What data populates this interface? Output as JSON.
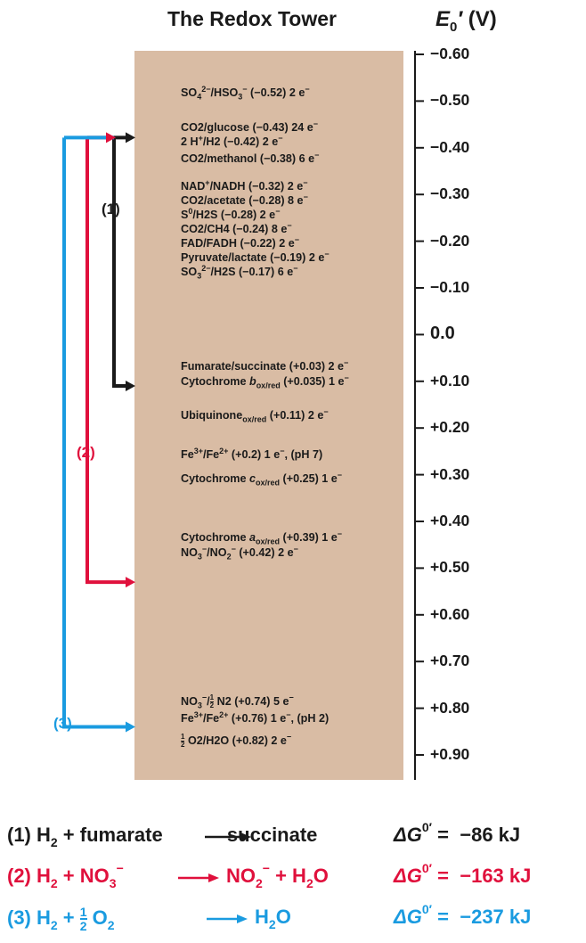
{
  "title": "The Redox Tower",
  "axis_label": {
    "main": "E",
    "sub": "0",
    "prime": "′",
    "unit": "(V)"
  },
  "axis_ticks": [
    "−0.60",
    "−0.50",
    "−0.40",
    "−0.30",
    "−0.20",
    "−0.10",
    "0.0",
    "+0.10",
    "+0.20",
    "+0.30",
    "+0.40",
    "+0.50",
    "+0.60",
    "+0.70",
    "+0.80",
    "+0.90"
  ],
  "couples": [
    {
      "name": "SO4^2−/HSO3^−",
      "e0": -0.52,
      "electrons": 2
    },
    {
      "name": "CO2/glucose",
      "e0": -0.43,
      "electrons": 24
    },
    {
      "name": "2 H+/H2",
      "e0": -0.42,
      "electrons": 2
    },
    {
      "name": "CO2/methanol",
      "e0": -0.38,
      "electrons": 6
    },
    {
      "name": "NAD+/NADH",
      "e0": -0.32,
      "electrons": 2
    },
    {
      "name": "CO2/acetate",
      "e0": -0.28,
      "electrons": 8
    },
    {
      "name": "S0/H2S",
      "e0": -0.28,
      "electrons": 2
    },
    {
      "name": "CO2/CH4",
      "e0": -0.24,
      "electrons": 8
    },
    {
      "name": "FAD/FADH",
      "e0": -0.22,
      "electrons": 2
    },
    {
      "name": "Pyruvate/lactate",
      "e0": -0.19,
      "electrons": 2
    },
    {
      "name": "SO3^2−/H2S",
      "e0": -0.17,
      "electrons": 6
    },
    {
      "name": "Fumarate/succinate",
      "e0": 0.03,
      "electrons": 2
    },
    {
      "name": "Cytochrome b ox/red",
      "e0": 0.035,
      "electrons": 1
    },
    {
      "name": "Ubiquinone ox/red",
      "e0": 0.11,
      "electrons": 2
    },
    {
      "name": "Fe3+/Fe2+",
      "e0": 0.2,
      "electrons": 1,
      "note": "(pH 7)"
    },
    {
      "name": "Cytochrome c ox/red",
      "e0": 0.25,
      "electrons": 1
    },
    {
      "name": "Cytochrome a ox/red",
      "e0": 0.39,
      "electrons": 1
    },
    {
      "name": "NO3^−/NO2^−",
      "e0": 0.42,
      "electrons": 2
    },
    {
      "name": "NO3^−/½ N2",
      "e0": 0.74,
      "electrons": 5
    },
    {
      "name": "Fe3+/Fe2+",
      "e0": 0.76,
      "electrons": 1,
      "note": "(pH 2)"
    },
    {
      "name": "½ O2/H2O",
      "e0": 0.82,
      "electrons": 2
    }
  ],
  "text": {
    "so4_val": " (−0.52) 2 e",
    "glucose": "CO2/glucose (−0.43) 24 e",
    "h2_val": "/H2 (−0.42) 2 e",
    "methanol": "CO2/methanol (−0.38) 6 e",
    "nad_val": "/NADH (−0.32) 2 e",
    "acetate": "CO2/acetate (−0.28) 8 e",
    "s0_val": "/H2S (−0.28) 2 e",
    "ch4": "CO2/CH4 (−0.24) 8 e",
    "fad": "FAD/FADH (−0.22) 2 e",
    "pyruvate": "Pyruvate/lactate (−0.19) 2 e",
    "so3_val": "/H2S (−0.17) 6 e",
    "fumarate": "Fumarate/succinate (+0.03) 2 e",
    "cytb_prefix": "Cytochrome ",
    "cytb_val": " (+0.035) 1 e",
    "ubi_prefix": "Ubiquinone",
    "ubi_val": " (+0.11) 2 e",
    "fe7_val": " (+0.2) 1 e",
    "fe7_note": ", (pH 7)",
    "cytc_prefix": "Cytochrome ",
    "cytc_val": " (+0.25) 1 e",
    "cyta_prefix": "Cytochrome ",
    "cyta_val": " (+0.39) 1 e",
    "no2_val": " (+0.42) 2 e",
    "n2_val": " N2 (+0.74) 5 e",
    "fe2_val": " (+0.76) 1 e",
    "fe2_note": ", (pH 2)",
    "o2_val": " O2/H2O (+0.82) 2 e"
  },
  "pathways": [
    {
      "label": "(1)",
      "color": "#1a1a1a",
      "from_e0": -0.42,
      "to_e0": 0.11
    },
    {
      "label": "(2)",
      "color": "#e0103c",
      "from_e0": -0.42,
      "to_e0": 0.53
    },
    {
      "label": "(3)",
      "color": "#1a9be0",
      "from_e0": -0.42,
      "to_e0": 0.84
    }
  ],
  "equations": [
    {
      "num": "(1)",
      "lhs": "H2 + fumarate",
      "rhs": "succinate",
      "dg": "ΔG0′",
      "value": "−86 kJ",
      "color": "#1a1a1a"
    },
    {
      "num": "(2)",
      "lhs": "H2 + NO3−",
      "rhs": "NO2− + H2O",
      "dg": "ΔG0′",
      "value": "−163 kJ",
      "color": "#e0103c"
    },
    {
      "num": "(3)",
      "lhs": "H2 + ½ O2",
      "rhs": "H2O",
      "dg": "ΔG0′",
      "value": "−237 kJ",
      "color": "#1a9be0"
    }
  ]
}
